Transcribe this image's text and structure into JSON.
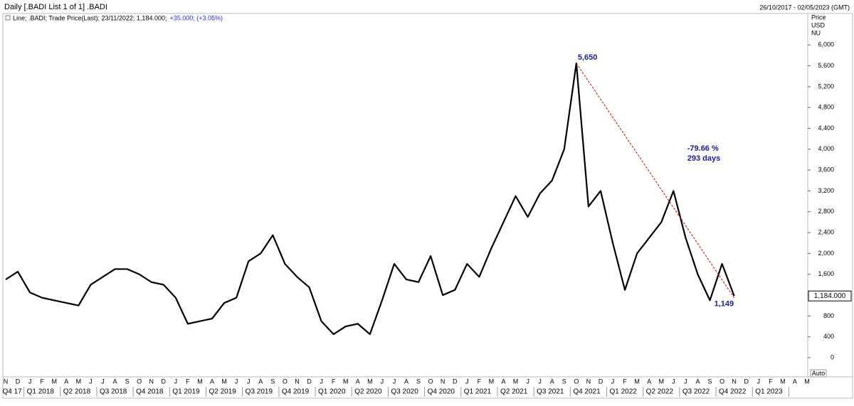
{
  "chart_data": {
    "type": "line",
    "title": "Daily [.BADI List 1 of 1] .BADI",
    "date_range": "26/10/2017 - 02/05/2023 (GMT)",
    "legend_text": "Line; .BADI; Trade Price(Last); 23/11/2022; 1,184.000;",
    "legend_change": "+35.000; (+3.05%)",
    "y_axis_label": [
      "Price",
      "USD",
      "NU"
    ],
    "auto_button": "Auto",
    "categories": [
      "N",
      "D",
      "J",
      "F",
      "M",
      "A",
      "M",
      "J",
      "J",
      "A",
      "S",
      "O",
      "N",
      "D",
      "J",
      "F",
      "M",
      "A",
      "M",
      "J",
      "J",
      "A",
      "S",
      "O",
      "N",
      "D",
      "J",
      "F",
      "M",
      "A",
      "M",
      "J",
      "J",
      "A",
      "S",
      "O",
      "N",
      "D",
      "J",
      "F",
      "M",
      "A",
      "M",
      "J",
      "J",
      "A",
      "S",
      "O",
      "N",
      "D",
      "J",
      "F",
      "M",
      "A",
      "M",
      "J",
      "J",
      "A",
      "S",
      "O",
      "N",
      "D",
      "J",
      "F",
      "M",
      "A",
      "M"
    ],
    "quarters": [
      "Q4 17",
      "Q1 2018",
      "Q2 2018",
      "Q3 2018",
      "Q4 2018",
      "Q1 2019",
      "Q2 2019",
      "Q3 2019",
      "Q4 2019",
      "Q1 2020",
      "Q2 2020",
      "Q3 2020",
      "Q4 2020",
      "Q1 2021",
      "Q2 2021",
      "Q3 2021",
      "Q4 2021",
      "Q1 2022",
      "Q2 2022",
      "Q3 2022",
      "Q4 2022",
      "Q1 2023"
    ],
    "series": [
      {
        "color": "#000000",
        "values": [
          1500,
          1650,
          1250,
          1150,
          1100,
          1050,
          1000,
          1400,
          1550,
          1700,
          1700,
          1600,
          1450,
          1400,
          1150,
          650,
          700,
          750,
          1050,
          1150,
          1850,
          2000,
          2350,
          1800,
          1550,
          1350,
          700,
          450,
          600,
          650,
          450,
          1100,
          1800,
          1500,
          1450,
          1950,
          1200,
          1300,
          1800,
          1550,
          2100,
          2600,
          3100,
          2700,
          3150,
          3400,
          4000,
          5650,
          2900,
          3200,
          2200,
          1300,
          2000,
          2300,
          2600,
          3200,
          2300,
          1600,
          1100,
          1800,
          1184,
          null,
          null,
          null,
          null,
          null,
          null
        ]
      }
    ],
    "ylim": [
      -368,
      6590
    ],
    "yticks": [
      0,
      400,
      800,
      {
        "value": 1200,
        "label": "1,200"
      },
      {
        "value": 1600,
        "label": "1,600"
      },
      {
        "value": 2000,
        "label": "2,000"
      },
      {
        "value": 2400,
        "label": "2,400"
      },
      {
        "value": 2800,
        "label": "2,800"
      },
      {
        "value": 3200,
        "label": "3,200"
      },
      {
        "value": 3600,
        "label": "3,600"
      },
      {
        "value": 4000,
        "label": "4,000"
      },
      {
        "value": 4400,
        "label": "4,400"
      },
      {
        "value": 4800,
        "label": "4,800"
      },
      {
        "value": 5200,
        "label": "5,200"
      },
      {
        "value": 5600,
        "label": "5,600"
      },
      {
        "value": 6000,
        "label": "6,000"
      }
    ],
    "last_price": {
      "value": 1184,
      "label": "1,184.000"
    },
    "annotation": {
      "start": {
        "value": 5650,
        "label": "5,650"
      },
      "end": {
        "value": 1149,
        "label": "1,149"
      },
      "change_label": "-79.66 %",
      "duration_label": "293 days"
    }
  }
}
